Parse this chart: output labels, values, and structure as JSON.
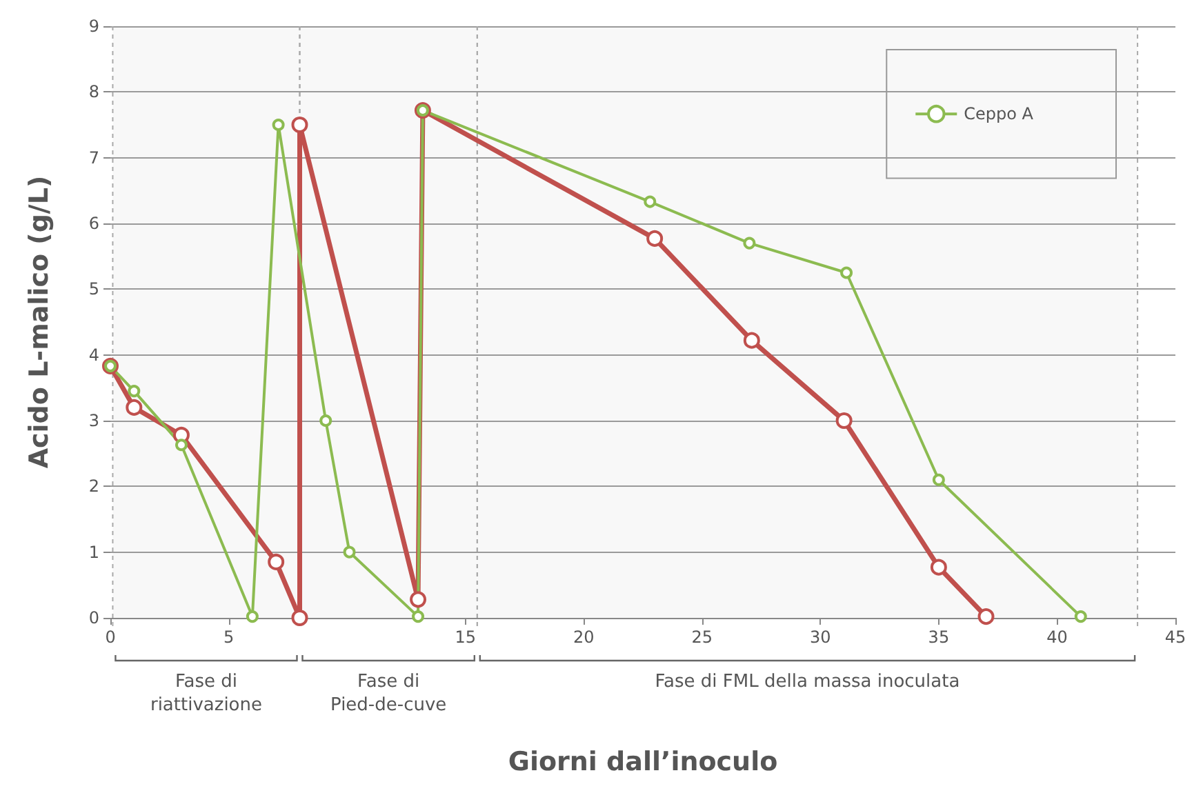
{
  "chart_data": {
    "type": "line",
    "xlabel": "Giorni dall’inoculo",
    "ylabel": "Acido L-malico (g/L)",
    "xlim": [
      0,
      45
    ],
    "xticks": [
      0,
      5,
      15,
      20,
      25,
      30,
      35,
      40,
      45
    ],
    "ylim": [
      0,
      9
    ],
    "yticks": [
      0,
      1,
      2,
      3,
      4,
      5,
      6,
      7,
      8,
      9
    ],
    "grid": "y",
    "legend": "top right",
    "marker": "circle",
    "line_style": "solid",
    "series": [
      {
        "color": "#c0504d",
        "x": [
          0,
          1,
          3,
          7,
          8,
          8,
          13,
          13.2,
          23,
          27.1,
          31,
          35,
          37
        ],
        "values": [
          3.83,
          3.2,
          2.78,
          0.85,
          0,
          7.5,
          0.28,
          7.72,
          5.77,
          4.22,
          3.0,
          0.77,
          0.02
        ]
      },
      {
        "name": "Ceppo A",
        "color": "#8cbb50",
        "x": [
          0,
          1,
          3,
          6,
          7.1,
          9.1,
          10.1,
          13,
          13.2,
          22.8,
          27,
          31.1,
          35,
          41
        ],
        "values": [
          3.83,
          3.45,
          2.63,
          0.02,
          7.5,
          3.0,
          1.0,
          0.02,
          7.72,
          6.33,
          5.7,
          5.25,
          2.1,
          0.02
        ]
      }
    ],
    "bands": [
      {
        "axis": "x",
        "from": 0.1,
        "to": 8,
        "label": "Fase di\nriattivazione",
        "color": "#aaaaaa"
      },
      {
        "axis": "x",
        "from": 8,
        "to": 15.5,
        "label": "Fase di\nPied-de-cuve",
        "color": "#aaaaaa"
      },
      {
        "axis": "x",
        "from": 15.5,
        "to": 43.4,
        "label": "Fase di FML della massa inoculata",
        "color": "#aaaaaa"
      }
    ]
  }
}
